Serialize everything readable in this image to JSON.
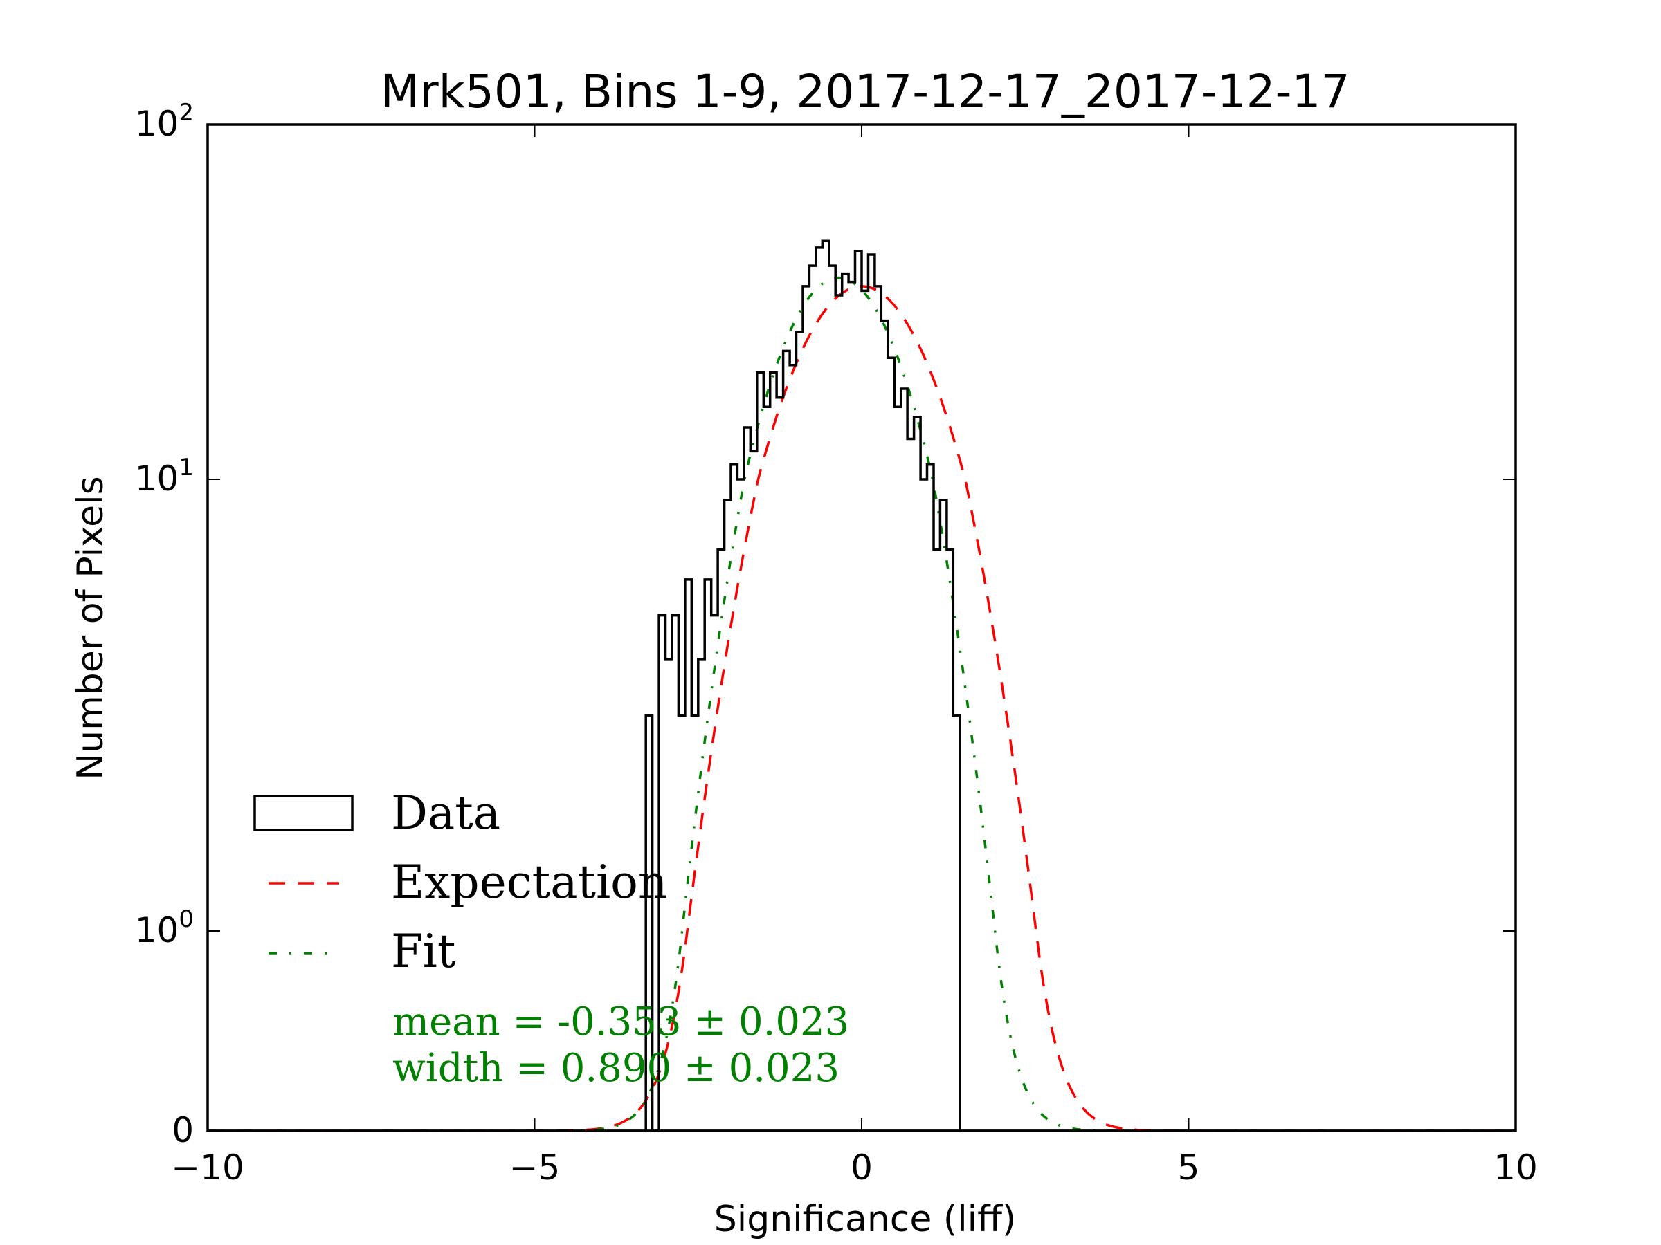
{
  "chart_data": {
    "type": "histogram",
    "title": "Mrk501, Bins 1-9, 2017-12-17_2017-12-17",
    "xlabel": "Significance (liff)",
    "ylabel": "Number of Pixels",
    "xlim": [
      -10,
      10
    ],
    "ylim": [
      0,
      100
    ],
    "yscale": "symlog",
    "xticks": [
      {
        "value": -10,
        "label": "−10"
      },
      {
        "value": -5,
        "label": "−5"
      },
      {
        "value": 0,
        "label": "0"
      },
      {
        "value": 5,
        "label": "5"
      },
      {
        "value": 10,
        "label": "10"
      }
    ],
    "yticks": [
      {
        "value": 100,
        "base": "10",
        "exp": "2"
      },
      {
        "value": 10,
        "base": "10",
        "exp": "1"
      },
      {
        "value": 1,
        "base": "10",
        "exp": "0"
      },
      {
        "value": 0,
        "base": "0",
        "exp": ""
      }
    ],
    "histogram": {
      "name": "Data",
      "bin_start": -3.3,
      "bin_width": 0.1,
      "counts": [
        3,
        0,
        5,
        4,
        5,
        3,
        6,
        3,
        4,
        6,
        5,
        7,
        9,
        11,
        10,
        14,
        12,
        20,
        16,
        20,
        17,
        23,
        21,
        26,
        35,
        40,
        45,
        47,
        40,
        33,
        38,
        36,
        44,
        34,
        43,
        35,
        28,
        22,
        16,
        18,
        13,
        15,
        10,
        11,
        7,
        9,
        7,
        3
      ]
    },
    "series": [
      {
        "name": "Expectation",
        "kind": "gaussian",
        "mean": 0.0,
        "width": 1.0,
        "amplitude": 35,
        "color": "#ff0000",
        "style": "dashed"
      },
      {
        "name": "Fit",
        "kind": "gaussian",
        "mean": -0.353,
        "width": 0.89,
        "amplitude": 37,
        "color": "#008000",
        "style": "dashdot"
      }
    ],
    "legend": {
      "placement": "lower-left",
      "entries": [
        "Data",
        "Expectation",
        "Fit"
      ]
    },
    "annotations": {
      "mean": "mean = -0.353 ± 0.023",
      "width": "width = 0.890 ± 0.023",
      "color": "#008000"
    }
  }
}
